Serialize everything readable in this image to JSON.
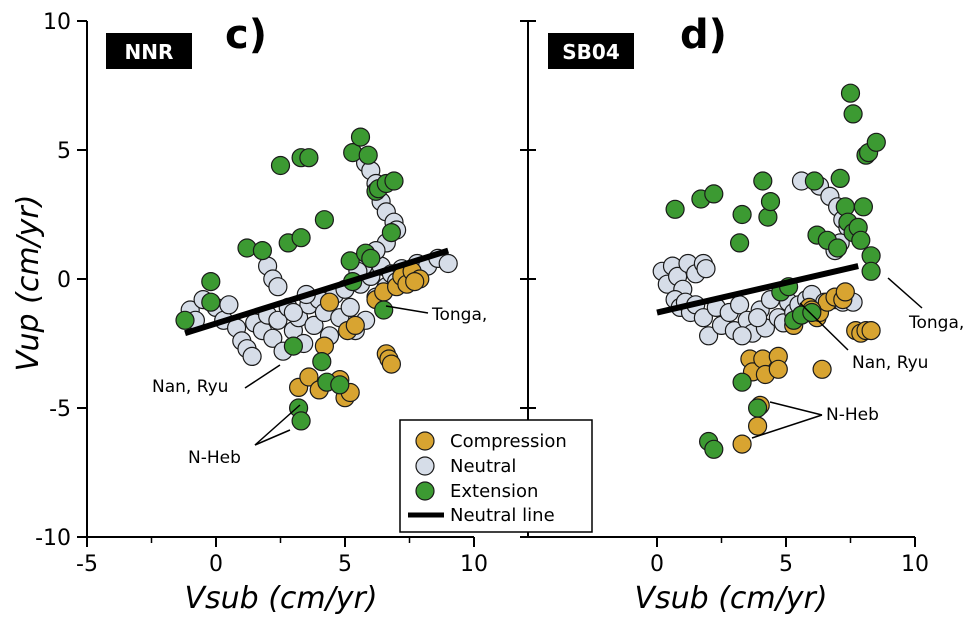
{
  "colors": {
    "Compression": "#d8a431",
    "Neutral": "#d6dde8",
    "Extension": "#3c9a32",
    "Neutral line": "#000000",
    "marker_edge": "#1a1a1a"
  },
  "legend": {
    "placement": "bottom-right of left panel",
    "entries": [
      "Compression",
      "Neutral",
      "Extension",
      "Neutral line"
    ]
  },
  "chart_data": [
    {
      "type": "scatter",
      "panel": "c)",
      "badge": "NNR",
      "xlabel": "Vsub (cm/yr)",
      "ylabel": "Vup (cm/yr)",
      "xlim": [
        -5,
        10
      ],
      "ylim": [
        -10,
        10
      ],
      "xticks": [
        "-5",
        "0",
        "5",
        "10"
      ],
      "yticks": [
        "10",
        "5",
        "0",
        "-5",
        "-10"
      ],
      "grid": false,
      "series": [
        {
          "name": "Neutral",
          "points": [
            [
              -1.0,
              -1.2
            ],
            [
              -0.5,
              -0.8
            ],
            [
              -0.8,
              -1.6
            ],
            [
              0.0,
              -1.1
            ],
            [
              0.3,
              -1.6
            ],
            [
              0.5,
              -1.0
            ],
            [
              0.8,
              -1.9
            ],
            [
              1.0,
              -2.4
            ],
            [
              1.2,
              -2.7
            ],
            [
              1.4,
              -3.0
            ],
            [
              1.5,
              -1.7
            ],
            [
              1.8,
              -2.0
            ],
            [
              2.0,
              -1.4
            ],
            [
              2.2,
              -2.3
            ],
            [
              2.4,
              -1.6
            ],
            [
              2.6,
              -2.8
            ],
            [
              2.8,
              -1.1
            ],
            [
              3.0,
              -2.0
            ],
            [
              3.2,
              -1.5
            ],
            [
              3.4,
              -2.5
            ],
            [
              3.6,
              -1.0
            ],
            [
              3.8,
              -1.8
            ],
            [
              4.0,
              -0.8
            ],
            [
              4.2,
              -1.3
            ],
            [
              4.4,
              -2.2
            ],
            [
              4.6,
              -0.6
            ],
            [
              4.8,
              -1.5
            ],
            [
              5.0,
              -0.4
            ],
            [
              5.2,
              -1.1
            ],
            [
              5.4,
              -2.0
            ],
            [
              5.6,
              -0.2
            ],
            [
              5.8,
              -1.6
            ],
            [
              6.0,
              0.1
            ],
            [
              6.2,
              -0.7
            ],
            [
              6.4,
              0.5
            ],
            [
              6.6,
              -0.3
            ],
            [
              6.8,
              0.2
            ],
            [
              7.0,
              -0.1
            ],
            [
              7.2,
              0.4
            ],
            [
              7.5,
              0.2
            ],
            [
              7.8,
              0.6
            ],
            [
              8.2,
              0.5
            ],
            [
              8.6,
              0.8
            ],
            [
              9.0,
              0.6
            ],
            [
              2.0,
              0.5
            ],
            [
              2.2,
              0.0
            ],
            [
              2.4,
              -0.3
            ],
            [
              5.8,
              4.5
            ],
            [
              6.0,
              4.2
            ],
            [
              6.2,
              3.7
            ],
            [
              6.4,
              3.0
            ],
            [
              6.6,
              2.6
            ],
            [
              6.9,
              2.2
            ],
            [
              7.0,
              1.9
            ],
            [
              6.6,
              1.4
            ],
            [
              6.2,
              1.1
            ],
            [
              5.9,
              0.8
            ],
            [
              5.7,
              0.5
            ],
            [
              5.5,
              0.3
            ],
            [
              3.0,
              -1.3
            ],
            [
              3.5,
              -0.6
            ]
          ]
        },
        {
          "name": "Compression",
          "points": [
            [
              3.2,
              -4.2
            ],
            [
              3.6,
              -3.8
            ],
            [
              4.0,
              -4.3
            ],
            [
              4.2,
              -2.6
            ],
            [
              4.4,
              -0.9
            ],
            [
              4.8,
              -3.9
            ],
            [
              5.0,
              -4.6
            ],
            [
              5.1,
              -2.0
            ],
            [
              5.2,
              -4.4
            ],
            [
              5.4,
              -1.8
            ],
            [
              6.2,
              -0.8
            ],
            [
              6.5,
              -0.5
            ],
            [
              6.6,
              -2.9
            ],
            [
              6.7,
              -3.1
            ],
            [
              6.8,
              -3.3
            ],
            [
              7.0,
              -0.3
            ],
            [
              7.2,
              0.1
            ],
            [
              7.4,
              -0.2
            ],
            [
              7.6,
              0.3
            ],
            [
              7.9,
              0.0
            ],
            [
              7.7,
              -0.1
            ]
          ]
        },
        {
          "name": "Extension",
          "points": [
            [
              -1.2,
              -1.6
            ],
            [
              -0.2,
              -0.1
            ],
            [
              -0.2,
              -0.9
            ],
            [
              1.2,
              1.2
            ],
            [
              1.8,
              1.1
            ],
            [
              2.5,
              4.4
            ],
            [
              2.8,
              1.4
            ],
            [
              3.0,
              -2.6
            ],
            [
              3.3,
              1.6
            ],
            [
              3.3,
              4.7
            ],
            [
              3.6,
              4.7
            ],
            [
              3.2,
              -5.0
            ],
            [
              3.3,
              -5.5
            ],
            [
              4.2,
              2.3
            ],
            [
              4.1,
              -3.2
            ],
            [
              4.3,
              -4.0
            ],
            [
              4.8,
              -4.1
            ],
            [
              5.2,
              0.7
            ],
            [
              5.3,
              -0.1
            ],
            [
              5.3,
              4.9
            ],
            [
              5.6,
              5.5
            ],
            [
              5.8,
              1.0
            ],
            [
              5.9,
              4.8
            ],
            [
              6.0,
              0.8
            ],
            [
              6.2,
              3.4
            ],
            [
              6.3,
              3.5
            ],
            [
              6.5,
              -1.2
            ],
            [
              6.6,
              3.7
            ],
            [
              6.8,
              1.8
            ],
            [
              6.9,
              3.8
            ]
          ]
        }
      ],
      "neutral_line": {
        "x": [
          -1.2,
          9.0
        ],
        "y": [
          -2.1,
          1.1
        ]
      },
      "annotations": [
        "Tonga,",
        "Nan, Ryu",
        "N-Heb"
      ]
    },
    {
      "type": "scatter",
      "panel": "d)",
      "badge": "SB04",
      "xlabel": "Vsub (cm/yr)",
      "ylabel": "",
      "xlim": [
        -5,
        10
      ],
      "ylim": [
        -10,
        10
      ],
      "xticks": [
        "0",
        "5",
        "10"
      ],
      "yticks": [],
      "grid": false,
      "series": [
        {
          "name": "Neutral",
          "points": [
            [
              0.2,
              0.3
            ],
            [
              0.4,
              -0.2
            ],
            [
              0.6,
              0.5
            ],
            [
              0.8,
              0.1
            ],
            [
              1.0,
              -0.4
            ],
            [
              1.2,
              0.6
            ],
            [
              1.5,
              0.2
            ],
            [
              1.8,
              0.6
            ],
            [
              1.9,
              0.4
            ],
            [
              0.7,
              -0.8
            ],
            [
              0.9,
              -1.1
            ],
            [
              1.1,
              -0.9
            ],
            [
              1.3,
              -1.3
            ],
            [
              1.5,
              -1.0
            ],
            [
              1.8,
              -1.5
            ],
            [
              2.0,
              -2.2
            ],
            [
              2.3,
              -1.1
            ],
            [
              2.5,
              -1.8
            ],
            [
              2.8,
              -1.3
            ],
            [
              3.0,
              -2.0
            ],
            [
              3.2,
              -1.0
            ],
            [
              3.5,
              -1.6
            ],
            [
              3.7,
              -2.1
            ],
            [
              4.0,
              -1.2
            ],
            [
              4.2,
              -1.9
            ],
            [
              4.4,
              -0.8
            ],
            [
              4.7,
              -1.5
            ],
            [
              4.9,
              -1.7
            ],
            [
              5.1,
              -0.9
            ],
            [
              5.3,
              -1.3
            ],
            [
              5.5,
              -1.0
            ],
            [
              5.8,
              -0.8
            ],
            [
              6.0,
              -0.6
            ],
            [
              6.5,
              -0.9
            ],
            [
              6.9,
              -0.8
            ],
            [
              7.2,
              -0.9
            ],
            [
              7.6,
              -0.9
            ],
            [
              5.6,
              3.8
            ],
            [
              6.3,
              3.6
            ],
            [
              6.7,
              3.2
            ],
            [
              7.0,
              2.8
            ],
            [
              7.2,
              2.3
            ],
            [
              7.4,
              2.0
            ],
            [
              7.1,
              1.4
            ],
            [
              6.9,
              1.1
            ],
            [
              3.3,
              -2.2
            ],
            [
              3.9,
              -1.5
            ]
          ]
        },
        {
          "name": "Compression",
          "points": [
            [
              3.3,
              -6.4
            ],
            [
              3.6,
              -3.1
            ],
            [
              3.7,
              -3.6
            ],
            [
              3.9,
              -5.7
            ],
            [
              4.0,
              -4.9
            ],
            [
              4.1,
              -3.1
            ],
            [
              4.2,
              -3.7
            ],
            [
              4.7,
              -3.0
            ],
            [
              4.7,
              -3.5
            ],
            [
              5.3,
              -1.8
            ],
            [
              5.6,
              -1.4
            ],
            [
              5.9,
              -1.1
            ],
            [
              6.2,
              -1.5
            ],
            [
              6.3,
              -1.3
            ],
            [
              6.4,
              -3.5
            ],
            [
              6.6,
              -0.9
            ],
            [
              6.9,
              -0.7
            ],
            [
              7.2,
              -0.8
            ],
            [
              7.3,
              -0.5
            ],
            [
              7.7,
              -2.0
            ],
            [
              7.9,
              -2.1
            ],
            [
              8.1,
              -2.0
            ],
            [
              8.3,
              -2.0
            ],
            [
              6.0,
              -1.2
            ]
          ]
        },
        {
          "name": "Extension",
          "points": [
            [
              0.7,
              2.7
            ],
            [
              1.7,
              3.1
            ],
            [
              2.2,
              3.3
            ],
            [
              3.2,
              1.4
            ],
            [
              3.3,
              2.5
            ],
            [
              3.3,
              -4.0
            ],
            [
              3.9,
              -5.0
            ],
            [
              2.0,
              -6.3
            ],
            [
              2.2,
              -6.6
            ],
            [
              4.1,
              3.8
            ],
            [
              4.3,
              2.4
            ],
            [
              4.4,
              3.0
            ],
            [
              4.8,
              -0.5
            ],
            [
              5.1,
              -0.3
            ],
            [
              5.3,
              -1.6
            ],
            [
              5.6,
              -1.4
            ],
            [
              6.0,
              -1.3
            ],
            [
              6.1,
              3.8
            ],
            [
              6.2,
              1.7
            ],
            [
              6.6,
              1.5
            ],
            [
              7.0,
              1.2
            ],
            [
              7.1,
              3.9
            ],
            [
              7.3,
              2.8
            ],
            [
              7.4,
              2.2
            ],
            [
              7.5,
              7.2
            ],
            [
              7.6,
              6.4
            ],
            [
              7.6,
              1.8
            ],
            [
              7.8,
              2.0
            ],
            [
              7.9,
              1.5
            ],
            [
              8.0,
              2.8
            ],
            [
              8.1,
              4.8
            ],
            [
              8.2,
              4.9
            ],
            [
              8.3,
              0.9
            ],
            [
              8.3,
              0.3
            ],
            [
              8.5,
              5.3
            ]
          ]
        }
      ],
      "neutral_line": {
        "x": [
          0.0,
          7.8
        ],
        "y": [
          -1.3,
          0.5
        ]
      },
      "annotations": [
        "Tonga,",
        "Nan, Ryu",
        "N-Heb"
      ]
    }
  ]
}
